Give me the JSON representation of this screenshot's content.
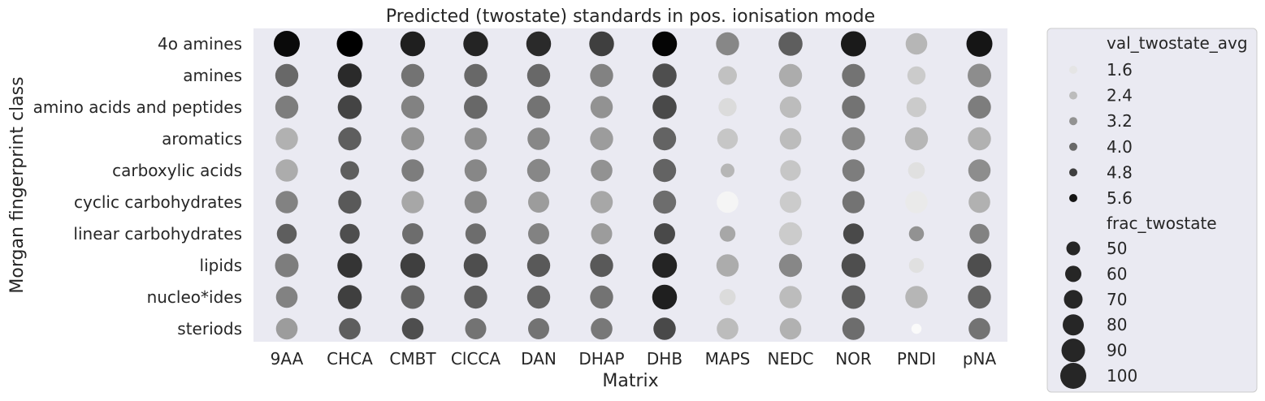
{
  "chart_data": {
    "type": "scatter",
    "title": "Predicted (twostate) standards in pos. ionisation mode",
    "xlabel": "Matrix",
    "ylabel": "Morgan fingerprint class",
    "x_categories": [
      "9AA",
      "CHCA",
      "CMBT",
      "ClCCA",
      "DAN",
      "DHAP",
      "DHB",
      "MAPS",
      "NEDC",
      "NOR",
      "PNDI",
      "pNA"
    ],
    "y_categories": [
      "4o amines",
      "amines",
      "amino acids and peptides",
      "aromatics",
      "carboxylic acids",
      "cyclic carbohydrates",
      "linear carbohydrates",
      "lipids",
      "nucleo*ides",
      "steriods"
    ],
    "hue_name": "val_twostate_avg",
    "size_name": "frac_twostate",
    "hue_range": [
      1.2,
      6.0
    ],
    "size_range": [
      0,
      100
    ],
    "background": "#eaeaf2",
    "legend_position": "outside-right",
    "legend": {
      "hue_title": "val_twostate_avg",
      "hue_values": [
        "1.6",
        "2.4",
        "3.2",
        "4.0",
        "4.8",
        "5.6"
      ],
      "size_title": "frac_twostate",
      "size_values": [
        "50",
        "60",
        "70",
        "80",
        "90",
        "100"
      ]
    },
    "val_twostate_avg": [
      [
        5.8,
        6.0,
        5.4,
        5.3,
        5.2,
        4.8,
        5.9,
        3.4,
        4.2,
        5.5,
        2.5,
        5.6
      ],
      [
        4.0,
        5.2,
        3.8,
        4.0,
        4.0,
        3.5,
        4.5,
        2.3,
        2.7,
        3.8,
        2.1,
        3.3
      ],
      [
        3.6,
        4.7,
        3.5,
        4.0,
        3.8,
        3.2,
        4.6,
        1.8,
        2.4,
        3.8,
        2.1,
        3.6
      ],
      [
        2.6,
        4.2,
        3.2,
        3.3,
        3.4,
        3.0,
        4.1,
        2.2,
        2.4,
        3.4,
        2.5,
        2.6
      ],
      [
        2.7,
        4.2,
        3.6,
        3.4,
        3.4,
        3.2,
        4.1,
        2.5,
        2.2,
        3.6,
        1.7,
        3.3
      ],
      [
        3.5,
        4.3,
        2.8,
        3.4,
        3.0,
        2.8,
        3.9,
        1.3,
        2.1,
        3.8,
        1.5,
        2.6
      ],
      [
        4.2,
        4.5,
        3.9,
        3.9,
        3.5,
        3.0,
        4.6,
        2.8,
        2.1,
        4.6,
        3.2,
        3.5
      ],
      [
        3.6,
        5.0,
        4.8,
        4.5,
        4.3,
        4.3,
        5.3,
        2.7,
        3.4,
        4.5,
        1.7,
        4.5
      ],
      [
        3.5,
        4.8,
        4.1,
        4.2,
        4.1,
        3.8,
        5.4,
        1.8,
        2.4,
        4.2,
        2.5,
        4.1
      ],
      [
        3.0,
        4.2,
        4.5,
        3.8,
        3.8,
        3.7,
        4.6,
        2.4,
        2.6,
        3.9,
        1.2,
        3.8
      ]
    ],
    "frac_twostate": [
      [
        100,
        100,
        95,
        95,
        95,
        95,
        95,
        88,
        92,
        97,
        82,
        100
      ],
      [
        88,
        92,
        88,
        88,
        88,
        88,
        92,
        70,
        88,
        88,
        68,
        90
      ],
      [
        88,
        92,
        88,
        90,
        88,
        85,
        92,
        68,
        82,
        88,
        75,
        88
      ],
      [
        85,
        88,
        88,
        85,
        85,
        88,
        88,
        78,
        82,
        88,
        88,
        88
      ],
      [
        85,
        70,
        85,
        85,
        88,
        82,
        88,
        50,
        78,
        85,
        62,
        85
      ],
      [
        85,
        88,
        85,
        85,
        80,
        85,
        88,
        82,
        82,
        85,
        85,
        82
      ],
      [
        75,
        75,
        80,
        78,
        80,
        80,
        80,
        58,
        88,
        78,
        55,
        75
      ],
      [
        90,
        95,
        95,
        92,
        88,
        88,
        95,
        85,
        88,
        92,
        55,
        92
      ],
      [
        82,
        92,
        90,
        88,
        88,
        88,
        95,
        60,
        85,
        90,
        85,
        88
      ],
      [
        82,
        82,
        82,
        80,
        80,
        82,
        85,
        82,
        82,
        85,
        35,
        82
      ]
    ]
  }
}
